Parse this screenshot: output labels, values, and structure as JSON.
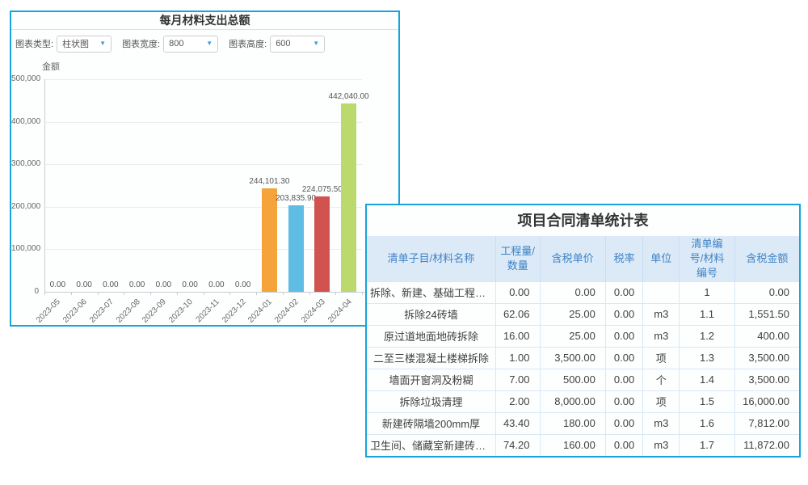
{
  "icons": {
    "chevron_down": "▼"
  },
  "colors": {
    "panel_border": "#17a4dc",
    "table_header_bg": "#dceaf8",
    "table_header_text": "#3e82c4",
    "row_border": "#d9e7f5"
  },
  "chart_panel": {
    "title": "每月材料支出总额",
    "controls": [
      {
        "label": "图表类型:",
        "value": "柱状图"
      },
      {
        "label": "图表宽度:",
        "value": "800"
      },
      {
        "label": "图表高度:",
        "value": "600"
      }
    ]
  },
  "chart_data": {
    "type": "bar",
    "title": "每月材料支出总额",
    "xlabel": "",
    "ylabel": "金额",
    "ylim": [
      0,
      500000
    ],
    "grid": true,
    "legend": false,
    "yticks": [
      "0",
      "100,000",
      "200,000",
      "300,000",
      "400,000",
      "500,000"
    ],
    "categories": [
      "2023-05",
      "2023-06",
      "2023-07",
      "2023-08",
      "2023-09",
      "2023-10",
      "2023-11",
      "2023-12",
      "2024-01",
      "2024-02",
      "2024-03",
      "2024-04"
    ],
    "values": [
      0,
      0,
      0,
      0,
      0,
      0,
      0,
      0,
      244101.3,
      203835.9,
      224075.5,
      442040.0
    ],
    "value_labels": [
      "0.00",
      "0.00",
      "0.00",
      "0.00",
      "0.00",
      "0.00",
      "0.00",
      "0.00",
      "244,101.30",
      "203,835.90",
      "224,075.50",
      "442,040.00"
    ],
    "bar_colors": [
      "#f5a43c",
      "#5fbce3",
      "#d0534f",
      "#bcd96e"
    ]
  },
  "table_panel": {
    "title": "项目合同清单统计表",
    "columns": [
      {
        "label": "清单子目/材料名称",
        "align": "center"
      },
      {
        "label": "工程量/数量",
        "align": "right"
      },
      {
        "label": "含税单价",
        "align": "right"
      },
      {
        "label": "税率",
        "align": "center"
      },
      {
        "label": "单位",
        "align": "center"
      },
      {
        "label": "清单编号/材料编号",
        "align": "center"
      },
      {
        "label": "含税金额",
        "align": "right"
      }
    ],
    "rows": [
      [
        "拆除、新建、基础工程部分",
        "0.00",
        "0.00",
        "0.00",
        "",
        "1",
        "0.00"
      ],
      [
        "拆除24砖墙",
        "62.06",
        "25.00",
        "0.00",
        "m3",
        "1.1",
        "1,551.50"
      ],
      [
        "原过道地面地砖拆除",
        "16.00",
        "25.00",
        "0.00",
        "m3",
        "1.2",
        "400.00"
      ],
      [
        "二至三楼混凝土楼梯拆除",
        "1.00",
        "3,500.00",
        "0.00",
        "项",
        "1.3",
        "3,500.00"
      ],
      [
        "墙面开窗洞及粉糊",
        "7.00",
        "500.00",
        "0.00",
        "个",
        "1.4",
        "3,500.00"
      ],
      [
        "拆除垃圾清理",
        "2.00",
        "8,000.00",
        "0.00",
        "项",
        "1.5",
        "16,000.00"
      ],
      [
        "新建砖隔墙200mm厚",
        "43.40",
        "180.00",
        "0.00",
        "m3",
        "1.6",
        "7,812.00"
      ],
      [
        "卫生间、储藏室新建砖隔...",
        "74.20",
        "160.00",
        "0.00",
        "m3",
        "1.7",
        "11,872.00"
      ]
    ]
  }
}
